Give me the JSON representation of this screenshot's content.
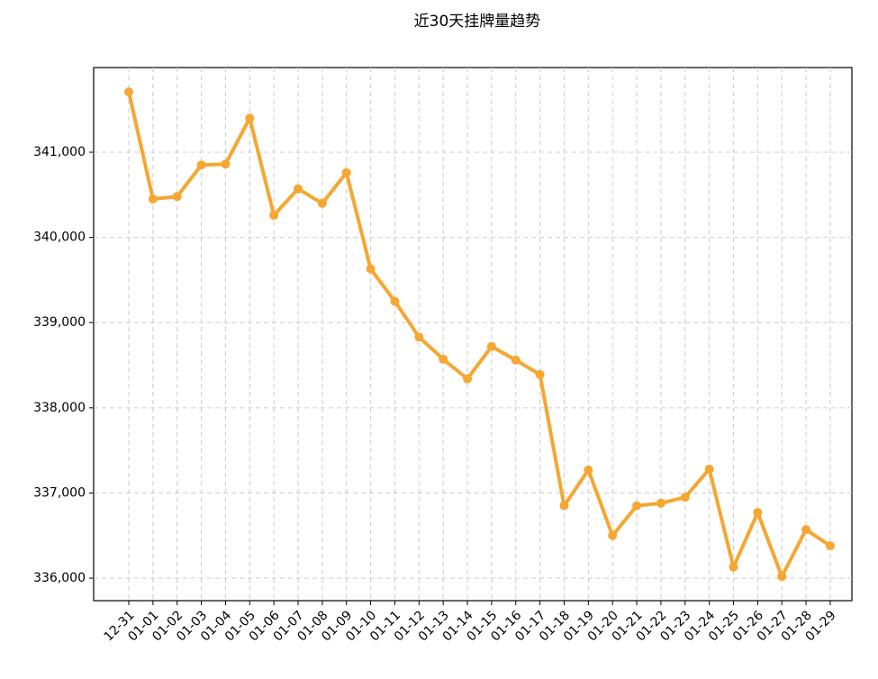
{
  "chart_data": {
    "type": "line",
    "title": "近30天挂牌量趋势",
    "categories": [
      "12-31",
      "01-01",
      "01-02",
      "01-03",
      "01-04",
      "01-05",
      "01-06",
      "01-07",
      "01-08",
      "01-09",
      "01-10",
      "01-11",
      "01-12",
      "01-13",
      "01-14",
      "01-15",
      "01-16",
      "01-17",
      "01-18",
      "01-19",
      "01-20",
      "01-21",
      "01-22",
      "01-23",
      "01-24",
      "01-25",
      "01-26",
      "01-27",
      "01-28",
      "01-29"
    ],
    "series": [
      {
        "color": "#f5a731",
        "values": [
          341708,
          340450,
          340480,
          340850,
          340860,
          341400,
          340260,
          340570,
          340400,
          340760,
          339630,
          339250,
          338830,
          338570,
          338340,
          338720,
          338560,
          338390,
          336850,
          337270,
          336500,
          336850,
          336880,
          336950,
          337280,
          336130,
          336770,
          336020,
          336570,
          336380
        ]
      }
    ],
    "ylim": [
      335736,
      341994
    ],
    "yticks": [
      {
        "value": 336000,
        "label": "336,000"
      },
      {
        "value": 337000,
        "label": "337,000"
      },
      {
        "value": 338000,
        "label": "338,000"
      },
      {
        "value": 339000,
        "label": "339,000"
      },
      {
        "value": 340000,
        "label": "340,000"
      },
      {
        "value": 341000,
        "label": "341,000"
      }
    ],
    "grid": true
  }
}
